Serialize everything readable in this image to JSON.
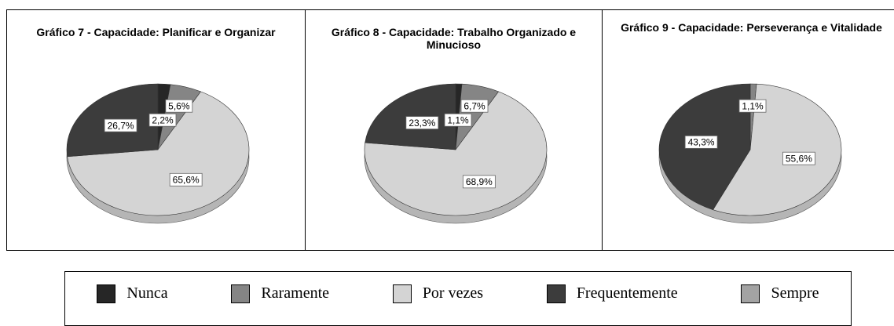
{
  "chart_data": [
    {
      "type": "pie",
      "title": "Gráfico 7 - Capacidade: Planificar e Organizar",
      "values": [
        2.2,
        5.6,
        65.6,
        26.7,
        null
      ],
      "value_labels": [
        "2,2%",
        "5,6%",
        "65,6%",
        "26,7%",
        null
      ]
    },
    {
      "type": "pie",
      "title": "Gráfico 8 - Capacidade: Trabalho Organizado e Minucioso",
      "values": [
        1.1,
        6.7,
        68.9,
        23.3,
        null
      ],
      "value_labels": [
        "1,1%",
        "6,7%",
        "68,9%",
        "23,3%",
        null
      ]
    },
    {
      "type": "pie",
      "title": "Gráfico 9 - Capacidade: Perseverança e Vitalidade",
      "values": [
        null,
        1.1,
        55.6,
        43.3,
        null
      ],
      "value_labels": [
        null,
        "1,1%",
        "55,6%",
        "43,3%",
        null
      ]
    }
  ],
  "legend": {
    "categories": [
      "Nunca",
      "Raramente",
      "Por vezes",
      "Frequentemente",
      "Sempre"
    ],
    "colors": [
      "#262626",
      "#858585",
      "#d4d4d4",
      "#3c3c3c",
      "#a3a3a3"
    ]
  }
}
